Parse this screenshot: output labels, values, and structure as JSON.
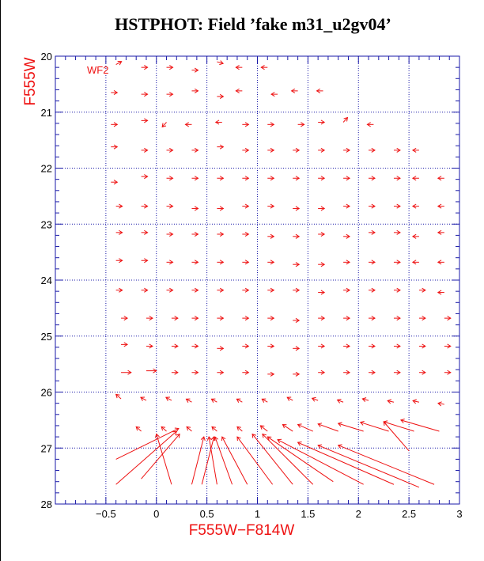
{
  "title": "HSTPHOT: Field ’fake m31_u2gv04’",
  "chart_data": {
    "type": "vector-field",
    "title": "HSTPHOT: Field ’fake m31_u2gv04’",
    "xlabel": "F555W−F814W",
    "ylabel": "F555W",
    "panel_label": "WF2",
    "xlim": [
      -1.0,
      3.0
    ],
    "ylim": [
      28,
      20
    ],
    "y_inverted": true,
    "grid": "dashed",
    "x_ticks": [
      -0.5,
      0,
      0.5,
      1,
      1.5,
      2,
      2.5,
      3
    ],
    "x_tick_labels": [
      "−0.5",
      "0",
      "0.5",
      "1",
      "1.5",
      "2",
      "2.5",
      "3"
    ],
    "y_ticks": [
      20,
      21,
      22,
      23,
      24,
      25,
      26,
      27,
      28
    ],
    "y_tick_labels": [
      "20",
      "21",
      "22",
      "23",
      "24",
      "25",
      "26",
      "27",
      "28"
    ],
    "colors": {
      "vectors": "#ee1111",
      "axes": "#1a1aa8",
      "grid": "#1a1aa8",
      "text": "#000000",
      "labels": "#ee1111"
    },
    "vectors": [
      {
        "x": -0.4,
        "y": 20.15,
        "dx": 0.02,
        "dy": -0.02
      },
      {
        "x": -0.15,
        "y": 20.2,
        "dx": 0.03,
        "dy": 0.0
      },
      {
        "x": 0.1,
        "y": 20.2,
        "dx": 0.02,
        "dy": 0.0
      },
      {
        "x": 0.35,
        "y": 20.25,
        "dx": 0.02,
        "dy": 0.0
      },
      {
        "x": 0.6,
        "y": 20.1,
        "dx": 0.02,
        "dy": 0.01
      },
      {
        "x": 0.85,
        "y": 20.2,
        "dx": -0.04,
        "dy": 0.0
      },
      {
        "x": 1.1,
        "y": 20.2,
        "dx": -0.03,
        "dy": 0.0
      },
      {
        "x": -0.45,
        "y": 20.65,
        "dx": 0.02,
        "dy": 0.0
      },
      {
        "x": -0.15,
        "y": 20.68,
        "dx": 0.02,
        "dy": 0.0
      },
      {
        "x": 0.1,
        "y": 20.68,
        "dx": 0.02,
        "dy": 0.0
      },
      {
        "x": 0.35,
        "y": 20.62,
        "dx": 0.04,
        "dy": 0.0
      },
      {
        "x": 0.6,
        "y": 20.72,
        "dx": 0.03,
        "dy": 0.0
      },
      {
        "x": 0.85,
        "y": 20.62,
        "dx": -0.04,
        "dy": 0.0
      },
      {
        "x": 1.2,
        "y": 20.68,
        "dx": -0.03,
        "dy": 0.0
      },
      {
        "x": 1.4,
        "y": 20.62,
        "dx": -0.03,
        "dy": 0.0
      },
      {
        "x": 1.65,
        "y": 20.62,
        "dx": -0.02,
        "dy": 0.0
      },
      {
        "x": -0.45,
        "y": 21.22,
        "dx": 0.02,
        "dy": 0.0
      },
      {
        "x": -0.15,
        "y": 21.15,
        "dx": 0.02,
        "dy": 0.0
      },
      {
        "x": 0.1,
        "y": 21.18,
        "dx": -0.02,
        "dy": 0.04
      },
      {
        "x": 0.35,
        "y": 21.22,
        "dx": -0.01,
        "dy": 0.0
      },
      {
        "x": 0.65,
        "y": 21.18,
        "dx": -0.01,
        "dy": 0.0
      },
      {
        "x": 0.85,
        "y": 21.22,
        "dx": 0.02,
        "dy": 0.0
      },
      {
        "x": 1.1,
        "y": 21.22,
        "dx": 0.02,
        "dy": 0.0
      },
      {
        "x": 1.4,
        "y": 21.22,
        "dx": 0.02,
        "dy": 0.0
      },
      {
        "x": 1.6,
        "y": 21.18,
        "dx": 0.02,
        "dy": 0.0
      },
      {
        "x": 1.85,
        "y": 21.18,
        "dx": 0.01,
        "dy": -0.02
      },
      {
        "x": 2.15,
        "y": 21.22,
        "dx": -0.02,
        "dy": 0.0
      },
      {
        "x": -0.45,
        "y": 21.62,
        "dx": 0.02,
        "dy": 0.0
      },
      {
        "x": -0.15,
        "y": 21.68,
        "dx": 0.02,
        "dy": 0.0
      },
      {
        "x": 0.1,
        "y": 21.68,
        "dx": 0.02,
        "dy": 0.0
      },
      {
        "x": 0.35,
        "y": 21.68,
        "dx": 0.02,
        "dy": 0.0
      },
      {
        "x": 0.6,
        "y": 21.62,
        "dx": 0.02,
        "dy": 0.0
      },
      {
        "x": 0.85,
        "y": 21.68,
        "dx": 0.02,
        "dy": 0.0
      },
      {
        "x": 1.1,
        "y": 21.68,
        "dx": 0.02,
        "dy": 0.0
      },
      {
        "x": 1.35,
        "y": 21.68,
        "dx": 0.02,
        "dy": 0.0
      },
      {
        "x": 1.6,
        "y": 21.68,
        "dx": 0.02,
        "dy": 0.0
      },
      {
        "x": 1.85,
        "y": 21.68,
        "dx": 0.02,
        "dy": 0.0
      },
      {
        "x": 2.1,
        "y": 21.68,
        "dx": 0.02,
        "dy": 0.0
      },
      {
        "x": 2.35,
        "y": 21.68,
        "dx": 0.02,
        "dy": 0.0
      },
      {
        "x": 2.6,
        "y": 21.68,
        "dx": -0.02,
        "dy": 0.0
      },
      {
        "x": -0.45,
        "y": 22.25,
        "dx": 0.02,
        "dy": 0.0
      },
      {
        "x": -0.15,
        "y": 22.15,
        "dx": 0.02,
        "dy": 0.0
      },
      {
        "x": 0.1,
        "y": 22.18,
        "dx": 0.02,
        "dy": 0.0
      },
      {
        "x": 0.35,
        "y": 22.18,
        "dx": 0.02,
        "dy": 0.0
      },
      {
        "x": 0.6,
        "y": 22.18,
        "dx": 0.02,
        "dy": 0.0
      },
      {
        "x": 0.85,
        "y": 22.18,
        "dx": 0.02,
        "dy": 0.0
      },
      {
        "x": 1.1,
        "y": 22.18,
        "dx": 0.02,
        "dy": 0.0
      },
      {
        "x": 1.35,
        "y": 22.18,
        "dx": 0.02,
        "dy": 0.0
      },
      {
        "x": 1.6,
        "y": 22.18,
        "dx": 0.02,
        "dy": 0.0
      },
      {
        "x": 1.85,
        "y": 22.18,
        "dx": 0.02,
        "dy": 0.0
      },
      {
        "x": 2.1,
        "y": 22.18,
        "dx": 0.02,
        "dy": 0.0
      },
      {
        "x": 2.35,
        "y": 22.18,
        "dx": 0.02,
        "dy": 0.0
      },
      {
        "x": 2.6,
        "y": 22.18,
        "dx": -0.02,
        "dy": 0.0
      },
      {
        "x": 2.85,
        "y": 22.18,
        "dx": -0.02,
        "dy": 0.0
      },
      {
        "x": -0.4,
        "y": 22.68,
        "dx": 0.02,
        "dy": 0.0
      },
      {
        "x": -0.15,
        "y": 22.68,
        "dx": 0.02,
        "dy": 0.0
      },
      {
        "x": 0.1,
        "y": 22.68,
        "dx": 0.02,
        "dy": 0.0
      },
      {
        "x": 0.35,
        "y": 22.72,
        "dx": 0.02,
        "dy": 0.0
      },
      {
        "x": 0.6,
        "y": 22.72,
        "dx": 0.02,
        "dy": 0.0
      },
      {
        "x": 0.85,
        "y": 22.68,
        "dx": 0.02,
        "dy": 0.0
      },
      {
        "x": 1.1,
        "y": 22.68,
        "dx": 0.02,
        "dy": 0.0
      },
      {
        "x": 1.35,
        "y": 22.72,
        "dx": 0.02,
        "dy": 0.0
      },
      {
        "x": 1.6,
        "y": 22.72,
        "dx": 0.02,
        "dy": 0.0
      },
      {
        "x": 1.85,
        "y": 22.68,
        "dx": 0.02,
        "dy": 0.0
      },
      {
        "x": 2.1,
        "y": 22.68,
        "dx": 0.02,
        "dy": 0.0
      },
      {
        "x": 2.35,
        "y": 22.68,
        "dx": 0.02,
        "dy": 0.0
      },
      {
        "x": 2.6,
        "y": 22.68,
        "dx": -0.02,
        "dy": 0.0
      },
      {
        "x": 2.85,
        "y": 22.68,
        "dx": -0.02,
        "dy": 0.0
      },
      {
        "x": -0.4,
        "y": 23.15,
        "dx": 0.02,
        "dy": 0.0
      },
      {
        "x": -0.15,
        "y": 23.15,
        "dx": 0.02,
        "dy": 0.0
      },
      {
        "x": 0.1,
        "y": 23.18,
        "dx": 0.02,
        "dy": 0.0
      },
      {
        "x": 0.35,
        "y": 23.18,
        "dx": 0.02,
        "dy": 0.0
      },
      {
        "x": 0.6,
        "y": 23.18,
        "dx": 0.02,
        "dy": 0.0
      },
      {
        "x": 0.85,
        "y": 23.18,
        "dx": 0.02,
        "dy": 0.0
      },
      {
        "x": 1.1,
        "y": 23.22,
        "dx": 0.02,
        "dy": 0.0
      },
      {
        "x": 1.35,
        "y": 23.22,
        "dx": 0.02,
        "dy": 0.0
      },
      {
        "x": 1.6,
        "y": 23.18,
        "dx": 0.02,
        "dy": 0.0
      },
      {
        "x": 1.85,
        "y": 23.22,
        "dx": 0.02,
        "dy": 0.0
      },
      {
        "x": 2.1,
        "y": 23.15,
        "dx": 0.02,
        "dy": 0.0
      },
      {
        "x": 2.35,
        "y": 23.15,
        "dx": 0.02,
        "dy": 0.0
      },
      {
        "x": 2.6,
        "y": 23.22,
        "dx": -0.02,
        "dy": 0.0
      },
      {
        "x": 2.85,
        "y": 23.15,
        "dx": -0.02,
        "dy": 0.0
      },
      {
        "x": -0.4,
        "y": 23.65,
        "dx": 0.02,
        "dy": 0.0
      },
      {
        "x": -0.15,
        "y": 23.65,
        "dx": 0.02,
        "dy": 0.0
      },
      {
        "x": 0.1,
        "y": 23.68,
        "dx": 0.02,
        "dy": 0.0
      },
      {
        "x": 0.35,
        "y": 23.68,
        "dx": 0.02,
        "dy": 0.0
      },
      {
        "x": 0.6,
        "y": 23.68,
        "dx": 0.02,
        "dy": 0.0
      },
      {
        "x": 0.85,
        "y": 23.68,
        "dx": 0.02,
        "dy": 0.0
      },
      {
        "x": 1.1,
        "y": 23.68,
        "dx": 0.02,
        "dy": 0.0
      },
      {
        "x": 1.35,
        "y": 23.72,
        "dx": 0.02,
        "dy": 0.0
      },
      {
        "x": 1.6,
        "y": 23.72,
        "dx": 0.02,
        "dy": 0.0
      },
      {
        "x": 1.85,
        "y": 23.68,
        "dx": 0.02,
        "dy": 0.0
      },
      {
        "x": 2.1,
        "y": 23.68,
        "dx": 0.02,
        "dy": 0.0
      },
      {
        "x": 2.35,
        "y": 23.68,
        "dx": 0.02,
        "dy": 0.0
      },
      {
        "x": 2.6,
        "y": 23.68,
        "dx": -0.02,
        "dy": 0.0
      },
      {
        "x": 2.85,
        "y": 23.68,
        "dx": -0.02,
        "dy": 0.0
      },
      {
        "x": -0.4,
        "y": 24.18,
        "dx": 0.02,
        "dy": 0.0
      },
      {
        "x": -0.15,
        "y": 24.18,
        "dx": 0.02,
        "dy": 0.0
      },
      {
        "x": 0.1,
        "y": 24.18,
        "dx": 0.02,
        "dy": 0.0
      },
      {
        "x": 0.35,
        "y": 24.18,
        "dx": 0.02,
        "dy": 0.0
      },
      {
        "x": 0.6,
        "y": 24.18,
        "dx": 0.02,
        "dy": 0.0
      },
      {
        "x": 0.85,
        "y": 24.18,
        "dx": 0.02,
        "dy": 0.0
      },
      {
        "x": 1.1,
        "y": 24.18,
        "dx": 0.02,
        "dy": 0.0
      },
      {
        "x": 1.35,
        "y": 24.18,
        "dx": 0.02,
        "dy": 0.0
      },
      {
        "x": 1.6,
        "y": 24.22,
        "dx": 0.02,
        "dy": 0.0
      },
      {
        "x": 1.85,
        "y": 24.18,
        "dx": 0.02,
        "dy": 0.0
      },
      {
        "x": 2.1,
        "y": 24.18,
        "dx": 0.02,
        "dy": 0.0
      },
      {
        "x": 2.35,
        "y": 24.18,
        "dx": 0.02,
        "dy": 0.0
      },
      {
        "x": 2.6,
        "y": 24.18,
        "dx": 0.02,
        "dy": 0.0
      },
      {
        "x": 2.85,
        "y": 24.22,
        "dx": -0.02,
        "dy": 0.0
      },
      {
        "x": -0.35,
        "y": 24.68,
        "dx": 0.02,
        "dy": 0.0
      },
      {
        "x": -0.1,
        "y": 24.68,
        "dx": 0.02,
        "dy": 0.0
      },
      {
        "x": 0.15,
        "y": 24.68,
        "dx": 0.02,
        "dy": 0.0
      },
      {
        "x": 0.35,
        "y": 24.68,
        "dx": 0.02,
        "dy": 0.0
      },
      {
        "x": 0.6,
        "y": 24.68,
        "dx": 0.02,
        "dy": 0.0
      },
      {
        "x": 0.85,
        "y": 24.68,
        "dx": 0.02,
        "dy": 0.0
      },
      {
        "x": 1.1,
        "y": 24.68,
        "dx": 0.02,
        "dy": 0.0
      },
      {
        "x": 1.35,
        "y": 24.72,
        "dx": 0.02,
        "dy": 0.0
      },
      {
        "x": 1.6,
        "y": 24.68,
        "dx": 0.02,
        "dy": 0.0
      },
      {
        "x": 1.85,
        "y": 24.68,
        "dx": 0.02,
        "dy": 0.0
      },
      {
        "x": 2.1,
        "y": 24.68,
        "dx": 0.02,
        "dy": 0.0
      },
      {
        "x": 2.35,
        "y": 24.68,
        "dx": 0.02,
        "dy": 0.0
      },
      {
        "x": 2.6,
        "y": 24.68,
        "dx": 0.02,
        "dy": 0.0
      },
      {
        "x": 2.85,
        "y": 24.68,
        "dx": 0.02,
        "dy": 0.0
      },
      {
        "x": -0.35,
        "y": 25.15,
        "dx": 0.05,
        "dy": 0.0
      },
      {
        "x": -0.1,
        "y": 25.18,
        "dx": 0.03,
        "dy": 0.0
      },
      {
        "x": 0.15,
        "y": 25.18,
        "dx": 0.02,
        "dy": 0.0
      },
      {
        "x": 0.35,
        "y": 25.18,
        "dx": 0.02,
        "dy": 0.0
      },
      {
        "x": 0.6,
        "y": 25.22,
        "dx": 0.02,
        "dy": 0.0
      },
      {
        "x": 0.85,
        "y": 25.18,
        "dx": 0.02,
        "dy": 0.0
      },
      {
        "x": 1.1,
        "y": 25.18,
        "dx": 0.02,
        "dy": 0.0
      },
      {
        "x": 1.35,
        "y": 25.22,
        "dx": 0.02,
        "dy": 0.0
      },
      {
        "x": 1.6,
        "y": 25.18,
        "dx": 0.02,
        "dy": 0.0
      },
      {
        "x": 1.85,
        "y": 25.18,
        "dx": 0.02,
        "dy": 0.0
      },
      {
        "x": 2.1,
        "y": 25.18,
        "dx": 0.02,
        "dy": 0.0
      },
      {
        "x": 2.35,
        "y": 25.18,
        "dx": 0.02,
        "dy": 0.0
      },
      {
        "x": 2.6,
        "y": 25.18,
        "dx": 0.02,
        "dy": 0.0
      },
      {
        "x": 2.85,
        "y": 25.18,
        "dx": 0.02,
        "dy": 0.0
      },
      {
        "x": -0.35,
        "y": 25.65,
        "dx": 0.1,
        "dy": 0.0
      },
      {
        "x": -0.1,
        "y": 25.62,
        "dx": 0.1,
        "dy": 0.0
      },
      {
        "x": 0.15,
        "y": 25.65,
        "dx": 0.02,
        "dy": 0.0
      },
      {
        "x": 0.35,
        "y": 25.65,
        "dx": 0.02,
        "dy": 0.0
      },
      {
        "x": 0.6,
        "y": 25.65,
        "dx": 0.02,
        "dy": 0.0
      },
      {
        "x": 0.85,
        "y": 25.65,
        "dx": 0.02,
        "dy": 0.0
      },
      {
        "x": 1.1,
        "y": 25.68,
        "dx": 0.02,
        "dy": 0.0
      },
      {
        "x": 1.35,
        "y": 25.68,
        "dx": 0.02,
        "dy": 0.0
      },
      {
        "x": 1.6,
        "y": 25.65,
        "dx": 0.02,
        "dy": 0.0
      },
      {
        "x": 1.85,
        "y": 25.65,
        "dx": 0.02,
        "dy": 0.0
      },
      {
        "x": 2.1,
        "y": 25.65,
        "dx": 0.02,
        "dy": 0.0
      },
      {
        "x": 2.35,
        "y": 25.65,
        "dx": 0.02,
        "dy": 0.0
      },
      {
        "x": 2.6,
        "y": 25.65,
        "dx": 0.02,
        "dy": 0.0
      },
      {
        "x": 2.85,
        "y": 25.65,
        "dx": 0.02,
        "dy": 0.0
      },
      {
        "x": -0.35,
        "y": 26.12,
        "dx": -0.05,
        "dy": -0.08
      },
      {
        "x": -0.1,
        "y": 26.15,
        "dx": -0.02,
        "dy": -0.02
      },
      {
        "x": 0.15,
        "y": 26.15,
        "dx": -0.02,
        "dy": -0.02
      },
      {
        "x": 0.35,
        "y": 26.18,
        "dx": -0.02,
        "dy": -0.02
      },
      {
        "x": 0.6,
        "y": 26.18,
        "dx": -0.02,
        "dy": -0.02
      },
      {
        "x": 0.85,
        "y": 26.18,
        "dx": -0.02,
        "dy": -0.02
      },
      {
        "x": 1.1,
        "y": 26.18,
        "dx": -0.02,
        "dy": -0.02
      },
      {
        "x": 1.35,
        "y": 26.15,
        "dx": -0.02,
        "dy": -0.02
      },
      {
        "x": 1.6,
        "y": 26.15,
        "dx": -0.03,
        "dy": -0.02
      },
      {
        "x": 1.85,
        "y": 26.18,
        "dx": -0.03,
        "dy": -0.02
      },
      {
        "x": 2.1,
        "y": 26.15,
        "dx": -0.04,
        "dy": -0.02
      },
      {
        "x": 2.35,
        "y": 26.18,
        "dx": -0.05,
        "dy": -0.02
      },
      {
        "x": 2.6,
        "y": 26.18,
        "dx": -0.05,
        "dy": -0.02
      },
      {
        "x": 2.85,
        "y": 26.22,
        "dx": -0.06,
        "dy": -0.02
      },
      {
        "x": -0.15,
        "y": 26.7,
        "dx": -0.05,
        "dy": -0.08
      },
      {
        "x": 0.1,
        "y": 26.7,
        "dx": -0.05,
        "dy": -0.08
      },
      {
        "x": 0.35,
        "y": 26.7,
        "dx": -0.05,
        "dy": -0.08
      },
      {
        "x": 0.6,
        "y": 26.7,
        "dx": -0.05,
        "dy": -0.08
      },
      {
        "x": 0.85,
        "y": 26.7,
        "dx": -0.05,
        "dy": -0.08
      },
      {
        "x": 1.1,
        "y": 26.7,
        "dx": -0.07,
        "dy": -0.1
      },
      {
        "x": 1.35,
        "y": 26.7,
        "dx": -0.1,
        "dy": -0.12
      },
      {
        "x": 1.55,
        "y": 26.7,
        "dx": -0.15,
        "dy": -0.12
      },
      {
        "x": 1.8,
        "y": 26.7,
        "dx": -0.2,
        "dy": -0.13
      },
      {
        "x": 2.05,
        "y": 26.7,
        "dx": -0.25,
        "dy": -0.14
      },
      {
        "x": 2.3,
        "y": 26.7,
        "dx": -0.28,
        "dy": -0.16
      },
      {
        "x": 2.55,
        "y": 26.7,
        "dx": -0.3,
        "dy": -0.17
      },
      {
        "x": 2.8,
        "y": 26.7,
        "dx": -0.38,
        "dy": -0.2
      },
      {
        "x": 2.5,
        "y": 27.05,
        "dx": -0.25,
        "dy": -0.52
      },
      {
        "x": -0.4,
        "y": 27.2,
        "dx": 0.62,
        "dy": -0.55
      },
      {
        "x": -0.4,
        "y": 27.65,
        "dx": 0.6,
        "dy": -0.95
      },
      {
        "x": -0.15,
        "y": 27.55,
        "dx": 0.38,
        "dy": -0.8
      },
      {
        "x": 0.15,
        "y": 27.65,
        "dx": -0.15,
        "dy": -0.9
      },
      {
        "x": 0.35,
        "y": 27.65,
        "dx": 0.12,
        "dy": -0.85
      },
      {
        "x": 0.45,
        "y": 27.65,
        "dx": 0.12,
        "dy": -0.85
      },
      {
        "x": 0.6,
        "y": 27.65,
        "dx": -0.08,
        "dy": -0.85
      },
      {
        "x": 0.75,
        "y": 27.65,
        "dx": -0.17,
        "dy": -0.85
      },
      {
        "x": 0.9,
        "y": 27.65,
        "dx": -0.25,
        "dy": -0.85
      },
      {
        "x": 1.15,
        "y": 27.65,
        "dx": -0.35,
        "dy": -0.85
      },
      {
        "x": 1.35,
        "y": 27.65,
        "dx": -0.4,
        "dy": -0.9
      },
      {
        "x": 1.55,
        "y": 27.65,
        "dx": -0.5,
        "dy": -0.9
      },
      {
        "x": 1.75,
        "y": 27.6,
        "dx": -0.65,
        "dy": -0.8
      },
      {
        "x": 2.05,
        "y": 27.65,
        "dx": -0.85,
        "dy": -0.8
      },
      {
        "x": 2.35,
        "y": 27.65,
        "dx": -0.95,
        "dy": -0.75
      },
      {
        "x": 2.6,
        "y": 27.7,
        "dx": -1.0,
        "dy": -0.75
      },
      {
        "x": 2.75,
        "y": 27.65,
        "dx": -0.95,
        "dy": -0.7
      }
    ]
  }
}
